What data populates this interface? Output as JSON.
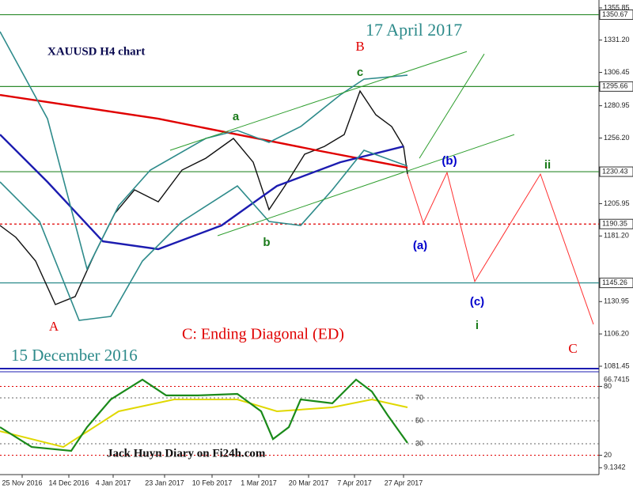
{
  "chart_data": {
    "type": "line",
    "title": "XAUUSD H4 chart",
    "annotations": [
      "17 April 2017",
      "B",
      "c",
      "a",
      "b",
      "A",
      "(b)",
      "ii",
      "(a)",
      "(c)",
      "i",
      "C",
      "C: Ending Diagonal (ED)",
      "15 December 2016",
      "Jack Huyn Diary on Fi24h.com"
    ],
    "xlim": [
      0,
      151.4
    ],
    "xticks": [
      {
        "value": 5.6,
        "label": "25 Nov 2016"
      },
      {
        "value": 17.4,
        "label": "14 Dec 2016"
      },
      {
        "value": 28.6,
        "label": "4 Jan 2017"
      },
      {
        "value": 41.6,
        "label": "23 Jan 2017"
      },
      {
        "value": 53.6,
        "label": "10 Feb 2017"
      },
      {
        "value": 65.4,
        "label": "1 Mar 2017"
      },
      {
        "value": 78,
        "label": "20 Mar 2017"
      },
      {
        "value": 89.6,
        "label": "7 Apr 2017"
      },
      {
        "value": 102,
        "label": "27 Apr 2017"
      }
    ],
    "ylim": [
      1081.45,
      1355.85
    ],
    "yticks": [
      {
        "value": 1355.85,
        "label": "1355.85"
      },
      {
        "value": 1331.2,
        "label": "1331.20"
      },
      {
        "value": 1306.45,
        "label": "1306.45"
      },
      {
        "value": 1280.95,
        "label": "1280.95"
      },
      {
        "value": 1256.2,
        "label": "1256.20"
      },
      {
        "value": 1205.95,
        "label": "1205.95"
      },
      {
        "value": 1181.2,
        "label": "1181.20"
      },
      {
        "value": 1130.95,
        "label": "1130.95"
      },
      {
        "value": 1106.2,
        "label": "1106.20"
      },
      {
        "value": 1081.45,
        "label": "1081.45"
      }
    ],
    "levels": [
      {
        "value": 1350.67,
        "label": "1350.67",
        "color": "#2e8b2e"
      },
      {
        "value": 1295.66,
        "label": "1295.66",
        "color": "#2e8b2e"
      },
      {
        "value": 1230.43,
        "label": "1230.43",
        "color": "#2e8b2e"
      },
      {
        "value": 1190.35,
        "label": "1190.35",
        "color": "#e00000"
      },
      {
        "value": 1145.26,
        "label": "1145.26",
        "color": "#2e8b8b"
      }
    ],
    "series": [
      {
        "color": "#111111",
        "x": [
          0,
          4,
          9,
          14,
          19,
          24,
          29,
          34,
          40,
          46,
          52,
          59,
          64,
          68,
          72,
          77,
          82,
          87,
          91,
          95,
          99,
          102,
          103
        ],
        "values": [
          1189.3,
          1180.2,
          1162,
          1128.7,
          1134.8,
          1168,
          1198.4,
          1216.5,
          1207.4,
          1231.7,
          1240.7,
          1255.9,
          1237.7,
          1201.4,
          1219.5,
          1243.8,
          1249.8,
          1258.9,
          1292.2,
          1274,
          1265,
          1249.8,
          1228.6
        ]
      },
      {
        "color": "#e00000",
        "x": [
          0,
          40,
          80,
          103
        ],
        "values": [
          1289.2,
          1271,
          1246.8,
          1233.5
        ]
      },
      {
        "color": "#1c1cb0",
        "x": [
          0,
          12,
          26,
          40,
          56,
          70,
          86,
          102
        ],
        "values": [
          1258.9,
          1222.6,
          1177.1,
          1171.1,
          1189.3,
          1219.5,
          1237.7,
          1249.8
        ]
      },
      {
        "color": "#2e8b8b",
        "x": [
          0,
          12,
          22,
          30,
          38,
          52,
          60,
          68,
          76,
          86,
          92,
          103
        ],
        "values": [
          1337.7,
          1271,
          1155.9,
          1204.4,
          1231.7,
          1255.9,
          1262,
          1252.9,
          1265,
          1289.2,
          1301.3,
          1304.3
        ]
      },
      {
        "color": "#2e8b8b",
        "x": [
          0,
          10,
          20,
          28,
          36,
          46,
          60,
          68,
          76,
          84,
          92,
          103
        ],
        "values": [
          1222.6,
          1192.3,
          1116.6,
          1119.6,
          1162,
          1192.3,
          1219.5,
          1192.3,
          1189.3,
          1216.5,
          1246.8,
          1234.7
        ]
      }
    ],
    "projection": {
      "color": "#ff3030",
      "x": [
        103,
        107,
        113,
        120,
        136.6,
        150
      ],
      "values": [
        1228.6,
        1191.1,
        1229.8,
        1146.3,
        1228.6,
        1113.5
      ]
    },
    "trendlines": [
      {
        "color": "#2e9e2e",
        "x": [
          43,
          118
        ],
        "values": [
          1246.8,
          1322.5
        ]
      },
      {
        "color": "#2e9e2e",
        "x": [
          55,
          130
        ],
        "values": [
          1181.4,
          1258.9
        ]
      },
      {
        "color": "#2e9e2e",
        "x": [
          106,
          122.4
        ],
        "values": [
          1240.7,
          1320.6
        ]
      }
    ],
    "oscillator": {
      "ylim": [
        -0.3,
        94.1
      ],
      "yticks": [
        80,
        20,
        9.1342
      ],
      "inner_ticks": [
        70,
        50,
        30
      ],
      "readout": 66.7415,
      "series": [
        {
          "color": "#e0d800",
          "x": [
            0,
            16,
            30,
            44,
            60,
            70,
            84,
            94,
            103
          ],
          "values": [
            41,
            27.2,
            58.3,
            68.6,
            68.6,
            58.3,
            61.7,
            68.6,
            61.7
          ]
        },
        {
          "color": "#1a8a1a",
          "x": [
            0,
            8,
            18,
            22,
            28,
            36,
            42,
            50,
            60,
            66,
            69,
            73,
            76,
            84,
            90,
            94,
            98,
            103
          ],
          "values": [
            44.5,
            27.2,
            23.8,
            44.5,
            68.6,
            85.9,
            72.1,
            72.1,
            73.4,
            58.3,
            34.1,
            44.5,
            68.6,
            65.2,
            85.9,
            75.5,
            54.8,
            30.7
          ]
        }
      ]
    }
  }
}
